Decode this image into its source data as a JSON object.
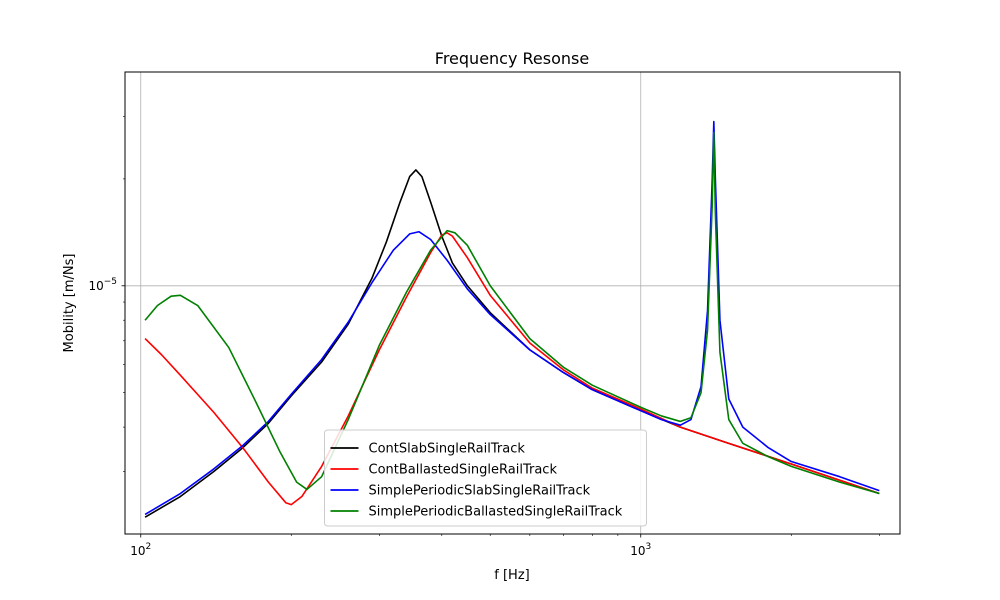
{
  "chart_data": {
    "type": "line",
    "title": "Frequency Resonse",
    "xlabel": "f [Hz]",
    "ylabel": "Mobility [m/Ns]",
    "xscale": "log",
    "yscale": "log",
    "xlim": [
      93,
      3300
    ],
    "ylim": [
      2e-06,
      4e-05
    ],
    "grid": true,
    "legend_position": "lower-center",
    "x_tick_labels": [
      {
        "value": 100,
        "base": "10",
        "exp": "2"
      },
      {
        "value": 1000,
        "base": "10",
        "exp": "3"
      }
    ],
    "y_tick_labels": [
      {
        "value": 1e-05,
        "base": "10",
        "exp": "−5"
      }
    ],
    "series": [
      {
        "name": "ContSlabSingleRailTrack",
        "color": "#000000",
        "points": [
          [
            102,
            2.23e-06
          ],
          [
            120,
            2.55e-06
          ],
          [
            140,
            3e-06
          ],
          [
            160,
            3.5e-06
          ],
          [
            180,
            4.1e-06
          ],
          [
            200,
            4.9e-06
          ],
          [
            230,
            6.1e-06
          ],
          [
            260,
            7.8e-06
          ],
          [
            290,
            1.05e-05
          ],
          [
            310,
            1.33e-05
          ],
          [
            330,
            1.72e-05
          ],
          [
            345,
            2.03e-05
          ],
          [
            355,
            2.12e-05
          ],
          [
            365,
            2.03e-05
          ],
          [
            380,
            1.72e-05
          ],
          [
            400,
            1.38e-05
          ],
          [
            420,
            1.16e-05
          ],
          [
            450,
            1e-05
          ],
          [
            500,
            8.4e-06
          ],
          [
            600,
            6.6e-06
          ],
          [
            700,
            5.7e-06
          ],
          [
            800,
            5.1e-06
          ],
          [
            1000,
            4.45e-06
          ],
          [
            1200,
            4e-06
          ],
          [
            1500,
            3.6e-06
          ],
          [
            2000,
            3.15e-06
          ],
          [
            3000,
            2.6e-06
          ]
        ]
      },
      {
        "name": "ContBallastedSingleRailTrack",
        "color": "#ff0000",
        "points": [
          [
            102,
            7.1e-06
          ],
          [
            110,
            6.4e-06
          ],
          [
            120,
            5.6e-06
          ],
          [
            140,
            4.4e-06
          ],
          [
            160,
            3.5e-06
          ],
          [
            180,
            2.8e-06
          ],
          [
            195,
            2.45e-06
          ],
          [
            200,
            2.42e-06
          ],
          [
            210,
            2.55e-06
          ],
          [
            230,
            3.1e-06
          ],
          [
            260,
            4.3e-06
          ],
          [
            300,
            6.6e-06
          ],
          [
            340,
            9.3e-06
          ],
          [
            380,
            1.24e-05
          ],
          [
            400,
            1.39e-05
          ],
          [
            410,
            1.41e-05
          ],
          [
            420,
            1.38e-05
          ],
          [
            450,
            1.2e-05
          ],
          [
            500,
            9.4e-06
          ],
          [
            600,
            6.9e-06
          ],
          [
            700,
            5.8e-06
          ],
          [
            800,
            5.15e-06
          ],
          [
            1000,
            4.5e-06
          ],
          [
            1200,
            4e-06
          ],
          [
            1500,
            3.6e-06
          ],
          [
            2000,
            3.15e-06
          ],
          [
            3000,
            2.6e-06
          ]
        ]
      },
      {
        "name": "SimplePeriodicSlabSingleRailTrack",
        "color": "#0000ff",
        "points": [
          [
            102,
            2.27e-06
          ],
          [
            120,
            2.6e-06
          ],
          [
            140,
            3.05e-06
          ],
          [
            160,
            3.55e-06
          ],
          [
            180,
            4.15e-06
          ],
          [
            200,
            4.95e-06
          ],
          [
            230,
            6.2e-06
          ],
          [
            260,
            7.9e-06
          ],
          [
            290,
            1.02e-05
          ],
          [
            320,
            1.26e-05
          ],
          [
            345,
            1.4e-05
          ],
          [
            360,
            1.42e-05
          ],
          [
            380,
            1.35e-05
          ],
          [
            410,
            1.18e-05
          ],
          [
            450,
            9.8e-06
          ],
          [
            500,
            8.3e-06
          ],
          [
            600,
            6.6e-06
          ],
          [
            700,
            5.7e-06
          ],
          [
            800,
            5.1e-06
          ],
          [
            1000,
            4.45e-06
          ],
          [
            1100,
            4.2e-06
          ],
          [
            1200,
            4.05e-06
          ],
          [
            1260,
            4.2e-06
          ],
          [
            1320,
            5.2e-06
          ],
          [
            1360,
            8.5e-06
          ],
          [
            1390,
            2e-05
          ],
          [
            1400,
            2.9e-05
          ],
          [
            1410,
            2e-05
          ],
          [
            1440,
            8e-06
          ],
          [
            1500,
            4.8e-06
          ],
          [
            1600,
            4e-06
          ],
          [
            1800,
            3.5e-06
          ],
          [
            2000,
            3.2e-06
          ],
          [
            2500,
            2.9e-06
          ],
          [
            3000,
            2.65e-06
          ]
        ]
      },
      {
        "name": "SimplePeriodicBallastedSingleRailTrack",
        "color": "#008000",
        "points": [
          [
            102,
            8e-06
          ],
          [
            108,
            8.8e-06
          ],
          [
            115,
            9.35e-06
          ],
          [
            120,
            9.4e-06
          ],
          [
            130,
            8.8e-06
          ],
          [
            150,
            6.7e-06
          ],
          [
            170,
            4.7e-06
          ],
          [
            190,
            3.4e-06
          ],
          [
            205,
            2.8e-06
          ],
          [
            215,
            2.67e-06
          ],
          [
            230,
            2.9e-06
          ],
          [
            260,
            4.2e-06
          ],
          [
            300,
            6.8e-06
          ],
          [
            340,
            9.6e-06
          ],
          [
            380,
            1.26e-05
          ],
          [
            410,
            1.43e-05
          ],
          [
            425,
            1.41e-05
          ],
          [
            450,
            1.3e-05
          ],
          [
            500,
            1e-05
          ],
          [
            600,
            7.1e-06
          ],
          [
            700,
            5.9e-06
          ],
          [
            800,
            5.25e-06
          ],
          [
            1000,
            4.55e-06
          ],
          [
            1100,
            4.3e-06
          ],
          [
            1200,
            4.15e-06
          ],
          [
            1260,
            4.25e-06
          ],
          [
            1320,
            5e-06
          ],
          [
            1360,
            7.5e-06
          ],
          [
            1390,
            1.7e-05
          ],
          [
            1400,
            2.7e-05
          ],
          [
            1410,
            1.6e-05
          ],
          [
            1440,
            6.5e-06
          ],
          [
            1500,
            4.2e-06
          ],
          [
            1600,
            3.6e-06
          ],
          [
            1800,
            3.3e-06
          ],
          [
            2000,
            3.1e-06
          ],
          [
            2500,
            2.8e-06
          ],
          [
            3000,
            2.6e-06
          ]
        ]
      }
    ]
  }
}
